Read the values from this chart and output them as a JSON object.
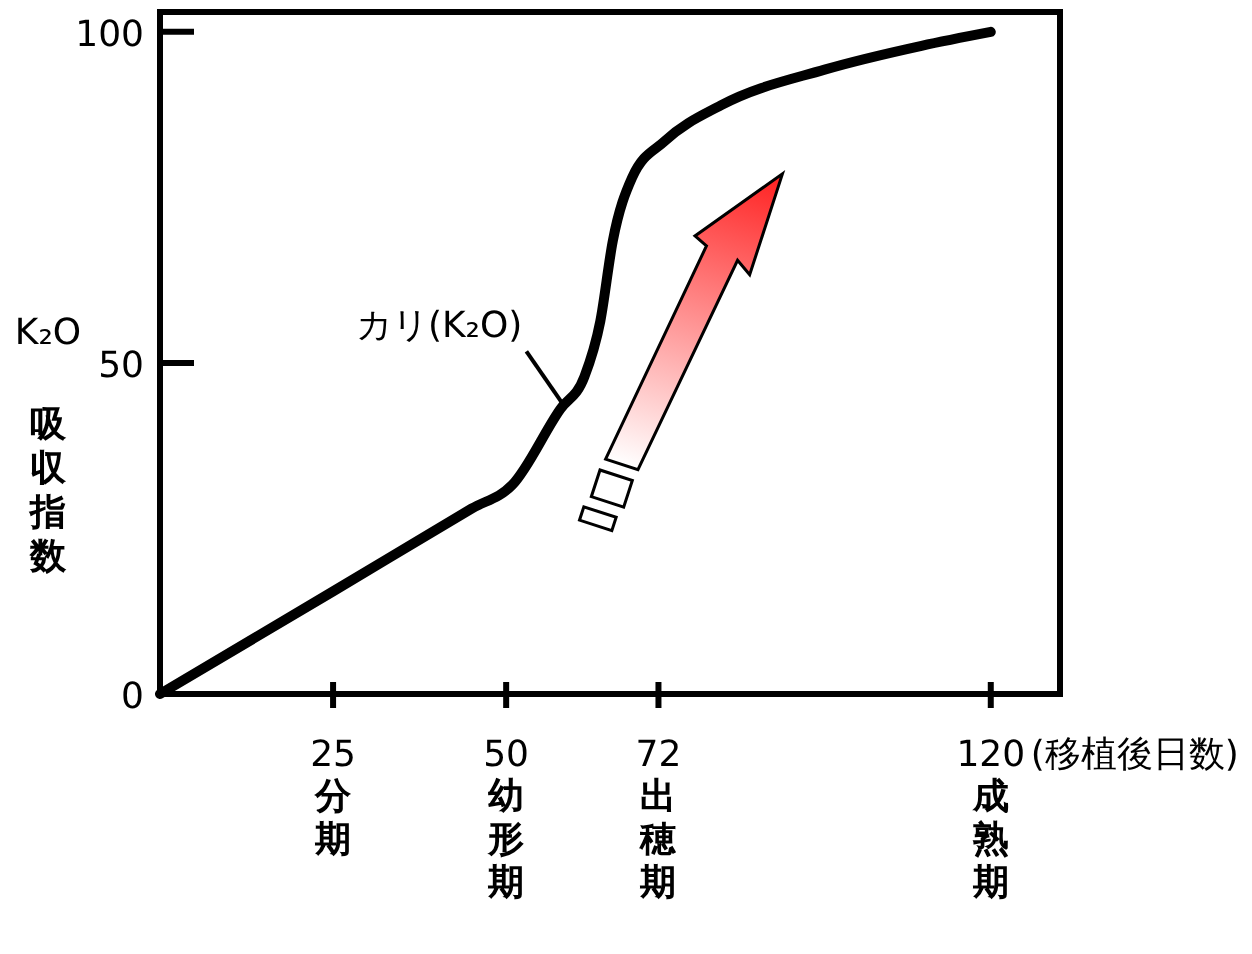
{
  "chart_data": {
    "type": "line",
    "ylabel": "K₂O 吸収指数",
    "xlabel": "(移植後日数)",
    "x": [
      0,
      25,
      45,
      50.9,
      57.8,
      61.3,
      63.6,
      65.4,
      68.2,
      72.9,
      81,
      96,
      110,
      120
    ],
    "series": [
      {
        "color": "#000000",
        "values": [
          0,
          15.5,
          28,
          31.6,
          43,
          47.9,
          56.3,
          68.4,
          78,
          83.5,
          88.9,
          94.3,
          97.9,
          100
        ]
      }
    ],
    "xlim": [
      0,
      130
    ],
    "ylim": [
      0,
      103
    ],
    "xticks": [
      25,
      50,
      72,
      120
    ],
    "yticks": [
      0,
      50,
      100
    ],
    "annotations": [
      {
        "text": "カリ(K₂O)",
        "x": 58.7,
        "y": 43
      },
      "分期",
      "幼形期",
      "出穂期",
      "成熟期"
    ],
    "grid": false,
    "marker": "none",
    "line_style": "solid"
  }
}
